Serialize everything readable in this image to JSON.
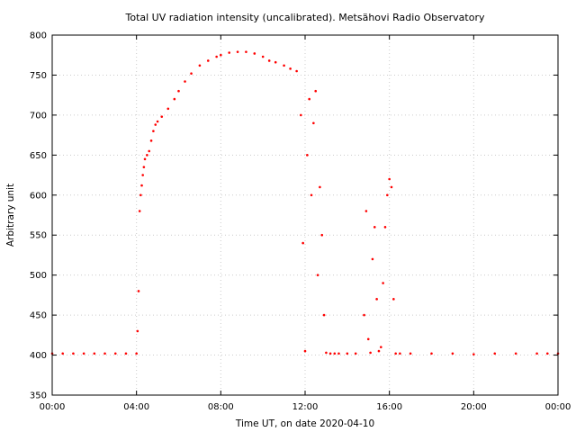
{
  "chart_data": {
    "type": "scatter",
    "title": "Total UV radiation intensity (uncalibrated). Metsähovi Radio Observatory",
    "xlabel": "Time UT, on date 2020-04-10",
    "ylabel": "Arbitrary unit",
    "xlim": [
      0,
      24
    ],
    "ylim": [
      350,
      800
    ],
    "x_ticks": [
      0,
      4,
      8,
      12,
      16,
      20,
      24
    ],
    "x_tick_labels": [
      "00:00",
      "04:00",
      "08:00",
      "12:00",
      "16:00",
      "20:00",
      "00:00"
    ],
    "y_ticks": [
      350,
      400,
      450,
      500,
      550,
      600,
      650,
      700,
      750,
      800
    ],
    "y_tick_labels": [
      "350",
      "400",
      "450",
      "500",
      "550",
      "600",
      "650",
      "700",
      "750",
      "800"
    ],
    "grid": true,
    "point_color": "#ff0000",
    "series": [
      {
        "x": [
          0.0,
          0.5,
          1.0,
          1.5,
          2.0,
          2.5,
          3.0,
          3.5,
          4.0,
          4.05,
          4.1,
          4.15,
          4.2,
          4.25,
          4.3,
          4.35,
          4.4,
          4.5,
          4.6,
          4.7,
          4.8,
          4.9,
          5.0,
          5.2,
          5.5,
          5.8,
          6.0,
          6.3,
          6.6,
          7.0,
          7.4,
          7.8,
          8.0,
          8.4,
          8.8,
          9.2,
          9.6,
          10.0,
          10.3,
          10.6,
          11.0,
          11.3,
          11.6,
          11.8,
          11.9,
          12.0,
          12.1,
          12.2,
          12.3,
          12.4,
          12.5,
          12.6,
          12.7,
          12.8,
          12.9,
          13.0,
          13.2,
          13.4,
          13.6,
          14.0,
          14.4,
          14.8,
          14.9,
          15.0,
          15.1,
          15.2,
          15.3,
          15.4,
          15.5,
          15.6,
          15.7,
          15.8,
          15.9,
          16.0,
          16.1,
          16.2,
          16.3,
          16.5,
          17.0,
          18.0,
          19.0,
          20.0,
          21.0,
          22.0,
          23.0,
          23.5,
          24.0
        ],
        "y": [
          402,
          402,
          402,
          402,
          402,
          402,
          402,
          402,
          402,
          430,
          480,
          580,
          600,
          612,
          625,
          635,
          645,
          650,
          655,
          668,
          680,
          688,
          692,
          698,
          708,
          720,
          730,
          742,
          752,
          762,
          768,
          773,
          775,
          778,
          779,
          779,
          777,
          773,
          768,
          766,
          762,
          758,
          755,
          700,
          540,
          405,
          650,
          720,
          600,
          690,
          730,
          500,
          610,
          550,
          450,
          403,
          402,
          402,
          402,
          402,
          402,
          450,
          580,
          420,
          403,
          520,
          560,
          470,
          405,
          410,
          490,
          560,
          600,
          620,
          610,
          470,
          402,
          402,
          402,
          402,
          402,
          401,
          402,
          402,
          402,
          402,
          402
        ]
      }
    ]
  }
}
